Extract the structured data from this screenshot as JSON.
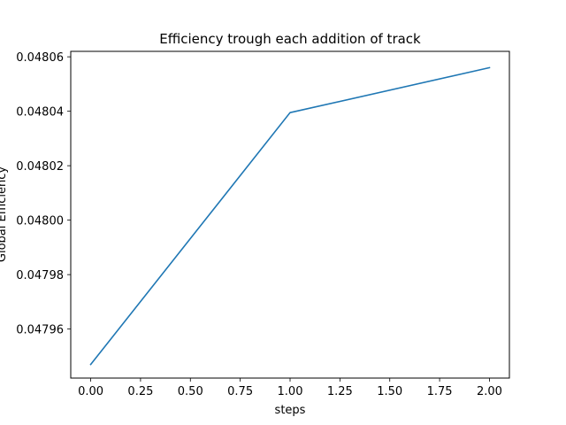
{
  "chart_data": {
    "type": "line",
    "title": "Efficiency trough each addition of track",
    "xlabel": "steps",
    "ylabel": "Global Efficiency",
    "xlim": [
      -0.1,
      2.1
    ],
    "ylim": [
      0.047942,
      0.048062
    ],
    "xticks": [
      "0.00",
      "0.25",
      "0.50",
      "0.75",
      "1.00",
      "1.25",
      "1.50",
      "1.75",
      "2.00"
    ],
    "yticks": [
      "0.04796",
      "0.04798",
      "0.04800",
      "0.04802",
      "0.04804",
      "0.04806"
    ],
    "grid": false,
    "series": [
      {
        "color": "#1f77b4",
        "x": [
          0,
          1,
          2
        ],
        "y": [
          0.047947,
          0.0480395,
          0.048056
        ]
      }
    ]
  }
}
